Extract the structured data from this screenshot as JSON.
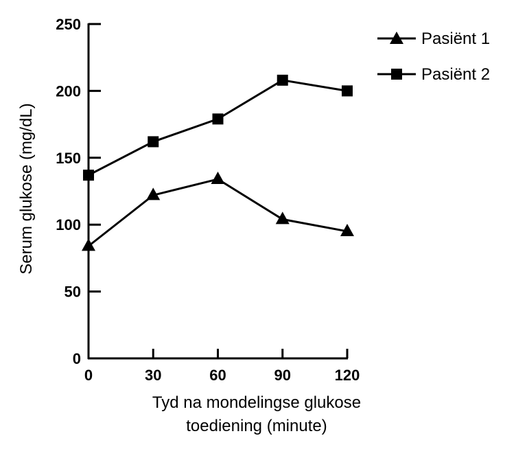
{
  "chart_data": {
    "type": "line",
    "x": [
      0,
      30,
      60,
      90,
      120
    ],
    "xlabel": [
      "Tyd na mondelingse glukose",
      "toediening (minute)"
    ],
    "ylabel": "Serum glukose (mg/dL)",
    "xlim": [
      0,
      120
    ],
    "ylim": [
      0,
      250
    ],
    "xticks": [
      "0",
      "30",
      "60",
      "90",
      "120"
    ],
    "yticks": [
      "0",
      "50",
      "100",
      "150",
      "200",
      "250"
    ],
    "grid": false,
    "legend_position": "top-right",
    "series": [
      {
        "name": "Pasiënt 1",
        "marker": "triangle",
        "values": [
          84,
          122,
          134,
          104,
          95
        ]
      },
      {
        "name": "Pasiënt 2",
        "marker": "square",
        "values": [
          137,
          162,
          179,
          208,
          200
        ]
      }
    ]
  }
}
